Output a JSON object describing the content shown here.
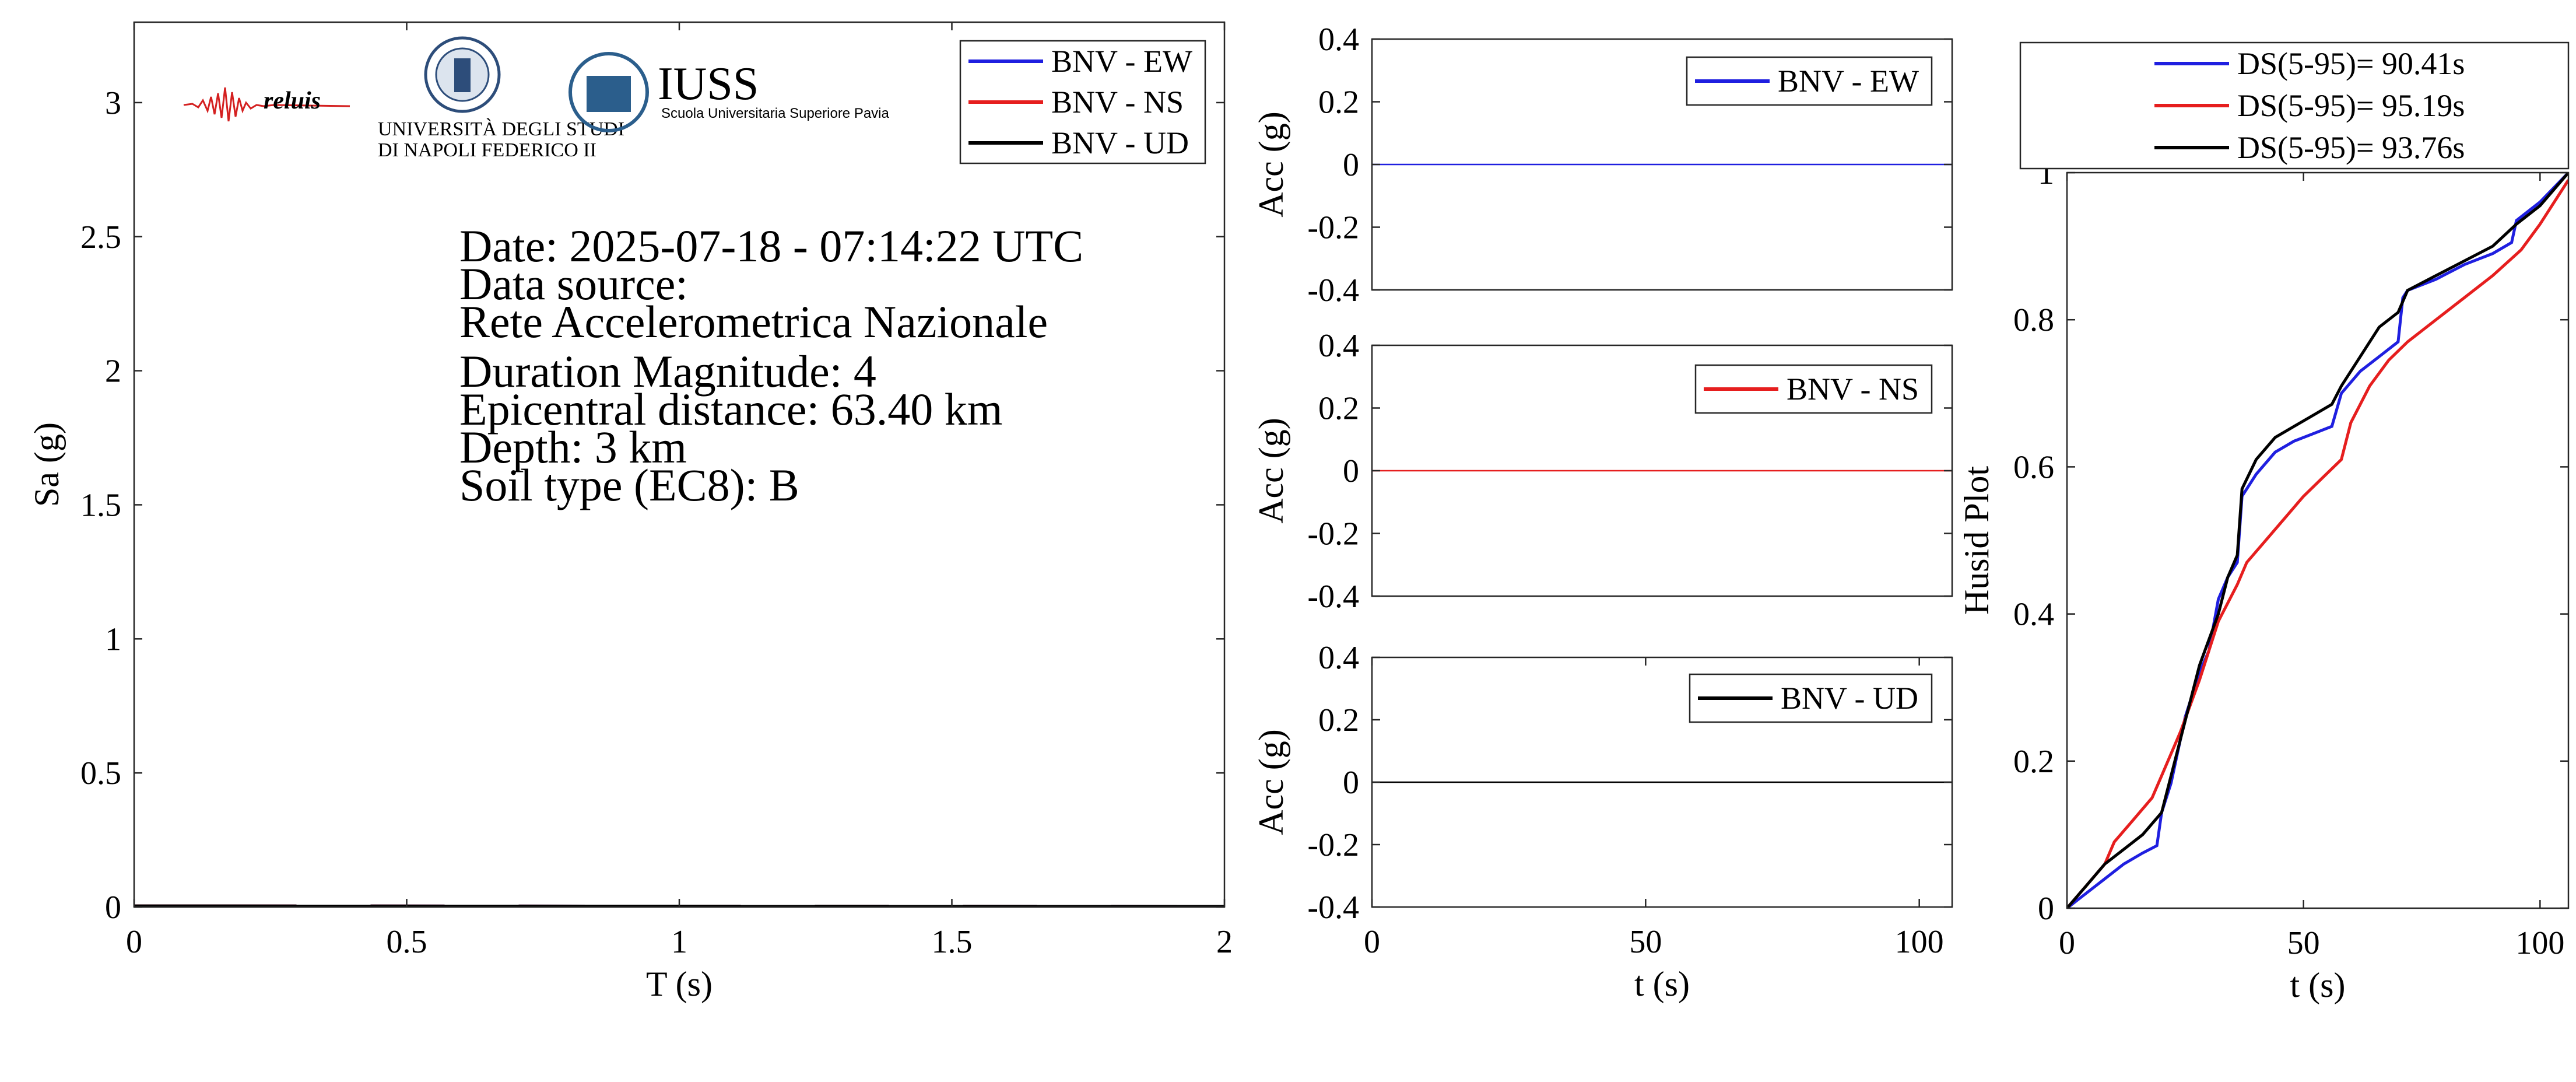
{
  "figure": {
    "info_lines": [
      "Date: 2025-07-18 - 07:14:22 UTC",
      "Data source:",
      "Rete Accelerometrica Nazionale",
      "Duration Magnitude: 4",
      "Epicentral distance: 63.40 km",
      "Depth: 3 km",
      "Soil type (EC8): B"
    ],
    "logos": {
      "reluis": "reluis",
      "unina_line1": "UNIVERSITÀ DEGLI STUDI",
      "unina_line2": "DI NAPOLI FEDERICO II",
      "iuss_title": "IUSS",
      "iuss_subtitle": "Scuola Universitaria Superiore Pavia"
    },
    "colors": {
      "ew": "#1f1fe0",
      "ns": "#e61e1e",
      "ud": "#000000"
    }
  },
  "chart_data": [
    {
      "id": "spectrum",
      "type": "line",
      "xlabel": "T (s)",
      "ylabel": "Sa (g)",
      "xlim": [
        0,
        2
      ],
      "ylim": [
        0,
        3.3
      ],
      "xticks": [
        0,
        0.5,
        1,
        1.5,
        2
      ],
      "xtick_labels": [
        "0",
        "0.5",
        "1",
        "1.5",
        "2"
      ],
      "yticks": [
        0,
        0.5,
        1,
        1.5,
        2,
        2.5,
        3
      ],
      "ytick_labels": [
        "0",
        "0.5",
        "1",
        "1.5",
        "2",
        "2.5",
        "3"
      ],
      "legend_position": "top-right",
      "series": [
        {
          "name": "BNV - EW",
          "color": "#1f1fe0",
          "x": [
            0,
            2
          ],
          "y": [
            0.003,
            0.001
          ]
        },
        {
          "name": "BNV - NS",
          "color": "#e61e1e",
          "x": [
            0,
            2
          ],
          "y": [
            0.003,
            0.001
          ]
        },
        {
          "name": "BNV - UD",
          "color": "#000000",
          "x": [
            0,
            2
          ],
          "y": [
            0.003,
            0.001
          ]
        }
      ]
    },
    {
      "id": "acc-ew",
      "type": "line",
      "xlabel": "",
      "ylabel": "Acc (g)",
      "xlim": [
        0,
        106
      ],
      "ylim": [
        -0.4,
        0.4
      ],
      "yticks": [
        -0.4,
        -0.2,
        0,
        0.2,
        0.4
      ],
      "ytick_labels": [
        "-0.4",
        "-0.2",
        "0",
        "0.2",
        "0.4"
      ],
      "legend_position": "top-right",
      "series": [
        {
          "name": "BNV - EW",
          "color": "#1f1fe0",
          "x": [
            0,
            106
          ],
          "y": [
            0,
            0
          ]
        }
      ]
    },
    {
      "id": "acc-ns",
      "type": "line",
      "xlabel": "",
      "ylabel": "Acc (g)",
      "xlim": [
        0,
        106
      ],
      "ylim": [
        -0.4,
        0.4
      ],
      "yticks": [
        -0.4,
        -0.2,
        0,
        0.2,
        0.4
      ],
      "ytick_labels": [
        "-0.4",
        "-0.2",
        "0",
        "0.2",
        "0.4"
      ],
      "legend_position": "top-right",
      "series": [
        {
          "name": "BNV - NS",
          "color": "#e61e1e",
          "x": [
            0,
            106
          ],
          "y": [
            0,
            0
          ]
        }
      ]
    },
    {
      "id": "acc-ud",
      "type": "line",
      "xlabel": "t (s)",
      "ylabel": "Acc (g)",
      "xlim": [
        0,
        106
      ],
      "ylim": [
        -0.4,
        0.4
      ],
      "xticks": [
        0,
        50,
        100
      ],
      "xtick_labels": [
        "0",
        "50",
        "100"
      ],
      "yticks": [
        -0.4,
        -0.2,
        0,
        0.2,
        0.4
      ],
      "ytick_labels": [
        "-0.4",
        "-0.2",
        "0",
        "0.2",
        "0.4"
      ],
      "legend_position": "top-right",
      "series": [
        {
          "name": "BNV - UD",
          "color": "#000000",
          "x": [
            0,
            106
          ],
          "y": [
            0,
            0
          ]
        }
      ]
    },
    {
      "id": "husid",
      "type": "line",
      "xlabel": "t (s)",
      "ylabel": "Husid Plot",
      "xlim": [
        0,
        106
      ],
      "ylim": [
        0,
        1
      ],
      "xticks": [
        0,
        50,
        100
      ],
      "xtick_labels": [
        "0",
        "50",
        "100"
      ],
      "yticks": [
        0,
        0.2,
        0.4,
        0.6,
        0.8,
        1
      ],
      "ytick_labels": [
        "0",
        "0.2",
        "0.4",
        "0.6",
        "0.8",
        "1"
      ],
      "legend_position": "above",
      "series": [
        {
          "name": "DS(5-95)= 90.41s",
          "color": "#1f1fe0",
          "x": [
            0,
            4,
            8,
            12,
            16,
            19,
            20,
            22,
            25,
            28,
            30,
            32,
            34,
            36,
            37,
            40,
            44,
            48,
            52,
            56,
            58,
            62,
            66,
            70,
            71,
            72,
            78,
            84,
            90,
            94,
            95,
            100,
            106
          ],
          "y": [
            0,
            0.02,
            0.04,
            0.06,
            0.075,
            0.085,
            0.13,
            0.17,
            0.26,
            0.32,
            0.35,
            0.42,
            0.45,
            0.47,
            0.56,
            0.59,
            0.62,
            0.635,
            0.645,
            0.655,
            0.7,
            0.73,
            0.75,
            0.77,
            0.83,
            0.84,
            0.855,
            0.875,
            0.89,
            0.905,
            0.935,
            0.96,
            1.0
          ]
        },
        {
          "name": "DS(5-95)= 95.19s",
          "color": "#e61e1e",
          "x": [
            0,
            4,
            8,
            10,
            14,
            18,
            20,
            24,
            28,
            32,
            36,
            38,
            42,
            46,
            50,
            54,
            58,
            60,
            64,
            68,
            72,
            78,
            84,
            90,
            96,
            100,
            106
          ],
          "y": [
            0,
            0.03,
            0.06,
            0.09,
            0.12,
            0.15,
            0.18,
            0.24,
            0.31,
            0.39,
            0.44,
            0.47,
            0.5,
            0.53,
            0.56,
            0.585,
            0.61,
            0.66,
            0.71,
            0.745,
            0.77,
            0.8,
            0.83,
            0.86,
            0.895,
            0.93,
            0.99
          ]
        },
        {
          "name": "DS(5-95)= 93.76s",
          "color": "#000000",
          "x": [
            0,
            4,
            8,
            12,
            16,
            20,
            24,
            28,
            32,
            34,
            36,
            37,
            40,
            44,
            48,
            52,
            56,
            58,
            62,
            66,
            70,
            72,
            78,
            84,
            90,
            95,
            100,
            106
          ],
          "y": [
            0,
            0.03,
            0.06,
            0.08,
            0.1,
            0.13,
            0.23,
            0.33,
            0.4,
            0.45,
            0.48,
            0.57,
            0.61,
            0.64,
            0.655,
            0.67,
            0.685,
            0.71,
            0.75,
            0.79,
            0.81,
            0.84,
            0.86,
            0.88,
            0.9,
            0.93,
            0.955,
            1.0
          ]
        }
      ]
    }
  ]
}
